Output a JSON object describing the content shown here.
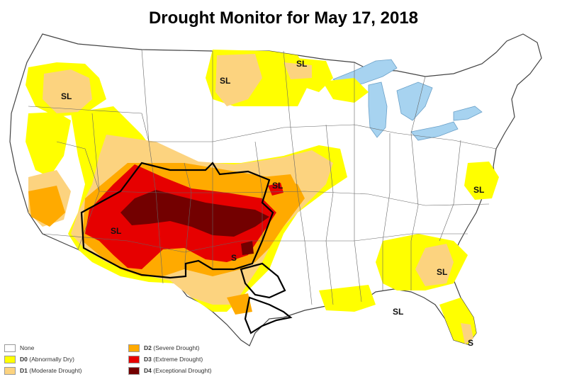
{
  "title": "Drought Monitor for May 17, 2018",
  "colors": {
    "none": "#ffffff",
    "d0": "#ffff00",
    "d1": "#fcd37f",
    "d2": "#ffaa00",
    "d3": "#e60000",
    "d4": "#730000",
    "water": "#a7d3f0",
    "border": "#555555",
    "outline": "#000000"
  },
  "legend": [
    {
      "code": "",
      "name": "None",
      "color": "#ffffff"
    },
    {
      "code": "D0",
      "name": "(Abnormally Dry)",
      "color": "#ffff00"
    },
    {
      "code": "D1",
      "name": "(Moderate Drought)",
      "color": "#fcd37f"
    },
    {
      "code": "D2",
      "name": "(Severe Drought)",
      "color": "#ffaa00"
    },
    {
      "code": "D3",
      "name": "(Extreme Drought)",
      "color": "#e60000"
    },
    {
      "code": "D4",
      "name": "(Exceptional Drought)",
      "color": "#730000"
    }
  ],
  "impact_labels": [
    "SL",
    "SL",
    "SL",
    "SL",
    "SL",
    "SL",
    "S",
    "SL",
    "SL",
    "S"
  ]
}
